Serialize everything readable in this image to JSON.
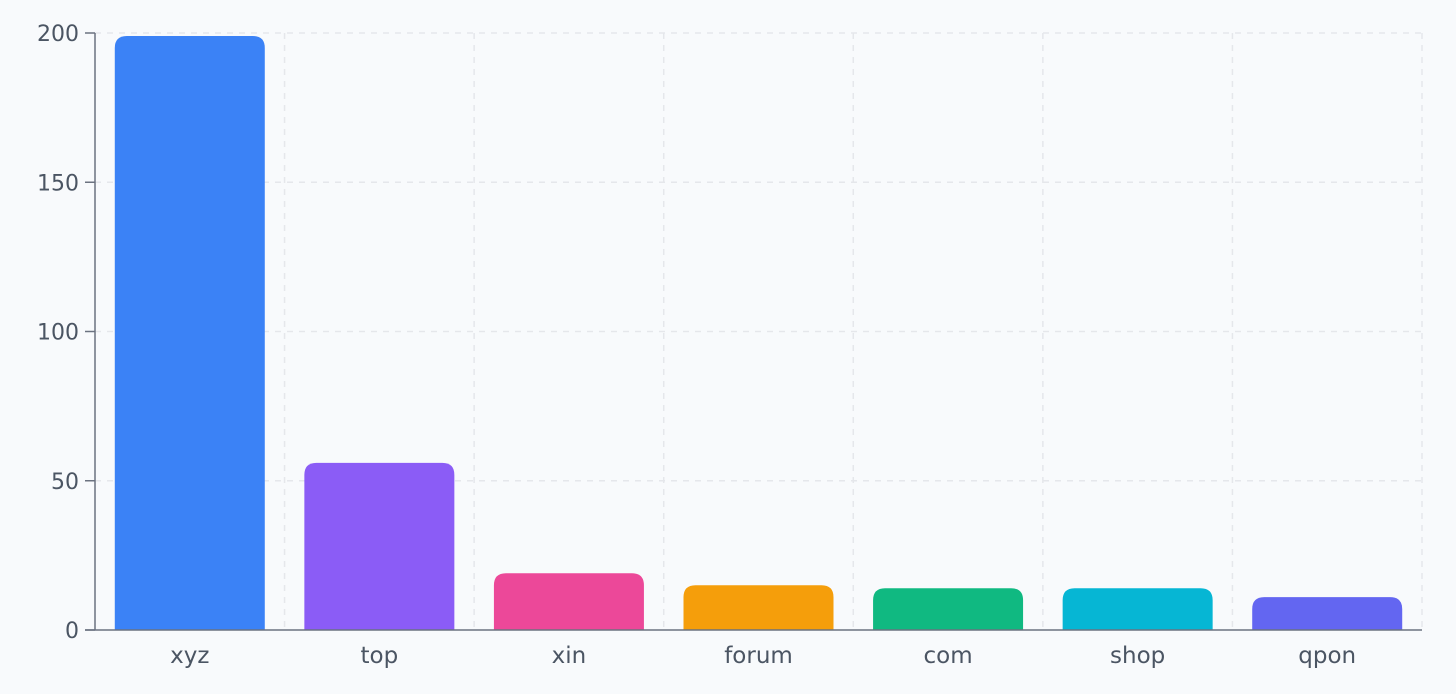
{
  "chart_data": {
    "type": "bar",
    "title": "",
    "xlabel": "",
    "ylabel": "",
    "categories": [
      "xyz",
      "top",
      "xin",
      "forum",
      "com",
      "shop",
      "qpon"
    ],
    "values": [
      199,
      56,
      19,
      15,
      14,
      14,
      11
    ],
    "colors": [
      "#3b82f6",
      "#8b5cf6",
      "#ec4899",
      "#f59e0b",
      "#10b981",
      "#06b6d4",
      "#6366f1"
    ],
    "ylim": [
      0,
      200
    ],
    "yticks": [
      0,
      50,
      100,
      150,
      200
    ],
    "grid": true,
    "legend": "none"
  },
  "colors": {
    "background": "#f8fafc",
    "grid": "#e5e7eb",
    "axis": "#6b7280",
    "text": "#4b5563"
  }
}
